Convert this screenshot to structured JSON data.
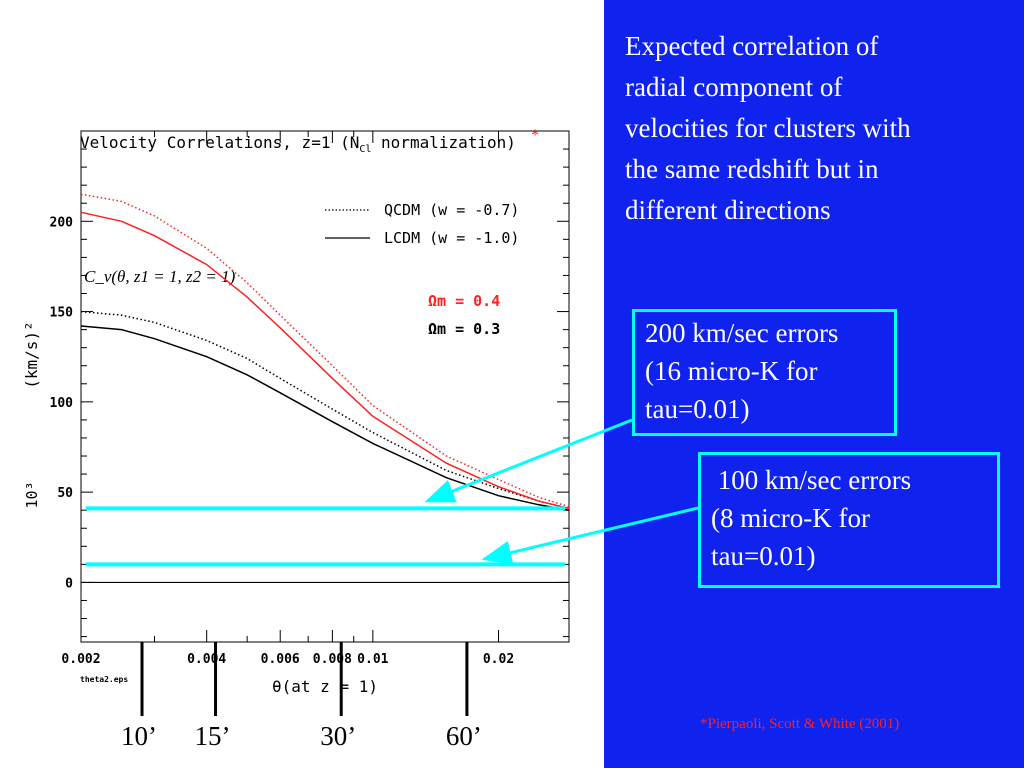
{
  "description": {
    "lines": [
      "Expected correlation of",
      "radial component of",
      "velocities for clusters with",
      "the same redshift but in",
      "different directions"
    ]
  },
  "error_boxes": [
    {
      "lines": [
        "200 km/sec errors",
        "(16 micro-K for",
        "tau=0.01)"
      ]
    },
    {
      "lines": [
        " 100 km/sec errors",
        "(8 micro-K for",
        "tau=0.01)"
      ]
    }
  ],
  "citation": "*Pierpaoli, Scott & White (2001)",
  "colors": {
    "background_right": "#0f22ee",
    "cyan": "#00ffff",
    "red": "#ff2020",
    "black": "#000000"
  },
  "chart_data": {
    "type": "line",
    "title": "Velocity Correlations, z=1 (N",
    "title_sub": "Cl",
    "title_end": " normalization)",
    "title_star": "*",
    "xlabel": "θ(at z = 1)",
    "ylabel": "(km/s)²",
    "ylabel_factor": "10³",
    "file_label": "theta2.eps",
    "formula_label": "C_v(θ, z1 = 1, z2 = 1)",
    "xlim": [
      0.002,
      0.0295
    ],
    "ylim": [
      -33,
      250
    ],
    "xscale": "log",
    "x_tick_values": [
      0.002,
      0.004,
      0.006,
      0.008,
      0.01,
      0.02
    ],
    "x_tick_labels": [
      "0.002",
      "0.004",
      "0.006",
      "0.008",
      "0.01",
      "0.02"
    ],
    "y_tick_values": [
      0,
      50,
      100,
      150,
      200
    ],
    "y_tick_labels": [
      "0",
      "50",
      "100",
      "150",
      "200"
    ],
    "legend": {
      "position": "top-right",
      "entries": [
        "QCDM (w = -0.7)",
        "LCDM (w = -1.0)"
      ],
      "omega_red": "Ωm = 0.4",
      "omega_black": "Ωm = 0.3"
    },
    "series": [
      {
        "name": "QCDM (w = -0.7)",
        "omega": "Ωm = 0.4",
        "style": "dotted",
        "color": "#ff2020",
        "x": [
          0.002,
          0.0025,
          0.003,
          0.004,
          0.005,
          0.006,
          0.008,
          0.01,
          0.015,
          0.02,
          0.025,
          0.0295
        ],
        "y": [
          215,
          211,
          203,
          185,
          166,
          148,
          120,
          98,
          70,
          57,
          47,
          42
        ]
      },
      {
        "name": "QCDM (w = -0.7)",
        "omega": "Ωm = 0.3",
        "style": "dotted",
        "color": "#000000",
        "x": [
          0.002,
          0.0025,
          0.003,
          0.004,
          0.005,
          0.006,
          0.008,
          0.01,
          0.015,
          0.02,
          0.025,
          0.0295
        ],
        "y": [
          150,
          148,
          144,
          134,
          124,
          113,
          96,
          83,
          62,
          52,
          45,
          41
        ]
      },
      {
        "name": "LCDM (w = -1.0)",
        "omega": "Ωm = 0.4",
        "style": "solid",
        "color": "#ff2020",
        "x": [
          0.002,
          0.0025,
          0.003,
          0.004,
          0.005,
          0.006,
          0.008,
          0.01,
          0.015,
          0.02,
          0.025,
          0.0295
        ],
        "y": [
          205,
          200,
          192,
          176,
          158,
          141,
          113,
          92,
          66,
          53,
          45,
          41
        ]
      },
      {
        "name": "LCDM (w = -1.0)",
        "omega": "Ωm = 0.3",
        "style": "solid",
        "color": "#000000",
        "x": [
          0.002,
          0.0025,
          0.003,
          0.004,
          0.005,
          0.006,
          0.008,
          0.01,
          0.015,
          0.02,
          0.025,
          0.0295
        ],
        "y": [
          142,
          140,
          135,
          125,
          115,
          105,
          89,
          77,
          58,
          48,
          43,
          40
        ]
      }
    ],
    "error_levels": [
      {
        "value": 41,
        "color": "#00ffff"
      },
      {
        "value": 10,
        "color": "#00ffff"
      }
    ],
    "zero_line": 0,
    "angle_markers": [
      {
        "x": 0.0028,
        "label": "10’"
      },
      {
        "x": 0.0042,
        "label": "15’"
      },
      {
        "x": 0.0084,
        "label": "30’"
      },
      {
        "x": 0.0168,
        "label": "60’"
      }
    ],
    "arrow_targets": [
      {
        "box": 0,
        "y": 45,
        "x": 0.0135
      },
      {
        "box": 1,
        "y": 13,
        "x": 0.0185
      }
    ]
  }
}
